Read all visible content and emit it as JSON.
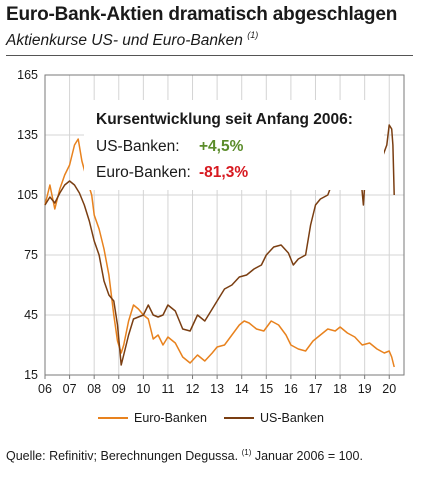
{
  "header": {
    "title": "Euro-Bank-Aktien dramatisch abgeschlagen",
    "subtitle": "Aktienkurse US- und Euro-Banken",
    "subtitle_note": "(1)"
  },
  "annotation": {
    "heading": "Kursentwicklung seit Anfang 2006:",
    "rows": [
      {
        "label": "US-Banken:",
        "value": "+4,5%",
        "color": "#5b8c2a"
      },
      {
        "label": "Euro-Banken:",
        "value": "-81,3%",
        "color": "#d71920"
      }
    ]
  },
  "footer": {
    "source_text": "Quelle: Refinitiv; Berechnungen Degussa.",
    "note_marker": "(1)",
    "note_text": "Januar 2006 = 100."
  },
  "chart_data": {
    "type": "line",
    "xlim": [
      2006,
      2020.6
    ],
    "ylim": [
      15,
      165
    ],
    "yticks": [
      15,
      45,
      75,
      105,
      135,
      165
    ],
    "xticks": [
      {
        "x": 2006,
        "label": "06"
      },
      {
        "x": 2007,
        "label": "07"
      },
      {
        "x": 2008,
        "label": "08"
      },
      {
        "x": 2009,
        "label": "09"
      },
      {
        "x": 2010,
        "label": "10"
      },
      {
        "x": 2011,
        "label": "11"
      },
      {
        "x": 2012,
        "label": "12"
      },
      {
        "x": 2013,
        "label": "13"
      },
      {
        "x": 2014,
        "label": "14"
      },
      {
        "x": 2015,
        "label": "15"
      },
      {
        "x": 2016,
        "label": "16"
      },
      {
        "x": 2017,
        "label": "17"
      },
      {
        "x": 2018,
        "label": "18"
      },
      {
        "x": 2019,
        "label": "19"
      },
      {
        "x": 2020,
        "label": "20"
      }
    ],
    "grid": true,
    "legend_position": "bottom",
    "series": [
      {
        "name": "Euro-Banken",
        "color": "#e8821e",
        "points": [
          [
            2006.0,
            100
          ],
          [
            2006.2,
            110
          ],
          [
            2006.4,
            98
          ],
          [
            2006.6,
            108
          ],
          [
            2006.8,
            115
          ],
          [
            2007.0,
            120
          ],
          [
            2007.2,
            130
          ],
          [
            2007.35,
            133
          ],
          [
            2007.5,
            122
          ],
          [
            2007.7,
            113
          ],
          [
            2007.9,
            105
          ],
          [
            2008.0,
            95
          ],
          [
            2008.2,
            88
          ],
          [
            2008.4,
            78
          ],
          [
            2008.6,
            65
          ],
          [
            2008.8,
            45
          ],
          [
            2008.95,
            32
          ],
          [
            2009.1,
            26
          ],
          [
            2009.2,
            30
          ],
          [
            2009.4,
            42
          ],
          [
            2009.6,
            50
          ],
          [
            2009.8,
            48
          ],
          [
            2010.0,
            45
          ],
          [
            2010.2,
            43
          ],
          [
            2010.4,
            33
          ],
          [
            2010.6,
            35
          ],
          [
            2010.8,
            30
          ],
          [
            2011.0,
            34
          ],
          [
            2011.3,
            31
          ],
          [
            2011.6,
            24
          ],
          [
            2011.9,
            21
          ],
          [
            2012.2,
            25
          ],
          [
            2012.5,
            22
          ],
          [
            2012.8,
            26
          ],
          [
            2013.0,
            29
          ],
          [
            2013.3,
            30
          ],
          [
            2013.6,
            35
          ],
          [
            2013.9,
            40
          ],
          [
            2014.1,
            42
          ],
          [
            2014.3,
            41
          ],
          [
            2014.6,
            38
          ],
          [
            2014.9,
            37
          ],
          [
            2015.2,
            42
          ],
          [
            2015.5,
            40
          ],
          [
            2015.8,
            35
          ],
          [
            2016.0,
            30
          ],
          [
            2016.3,
            28
          ],
          [
            2016.6,
            27
          ],
          [
            2016.9,
            32
          ],
          [
            2017.2,
            35
          ],
          [
            2017.5,
            38
          ],
          [
            2017.8,
            37
          ],
          [
            2018.0,
            39
          ],
          [
            2018.3,
            36
          ],
          [
            2018.6,
            34
          ],
          [
            2018.9,
            30
          ],
          [
            2019.2,
            31
          ],
          [
            2019.5,
            28
          ],
          [
            2019.8,
            26
          ],
          [
            2020.0,
            27
          ],
          [
            2020.1,
            24
          ],
          [
            2020.2,
            19
          ]
        ]
      },
      {
        "name": "US-Banken",
        "color": "#7a3e12",
        "points": [
          [
            2006.0,
            100
          ],
          [
            2006.2,
            104
          ],
          [
            2006.4,
            101
          ],
          [
            2006.6,
            106
          ],
          [
            2006.8,
            110
          ],
          [
            2007.0,
            112
          ],
          [
            2007.2,
            110
          ],
          [
            2007.4,
            106
          ],
          [
            2007.6,
            100
          ],
          [
            2007.8,
            92
          ],
          [
            2008.0,
            82
          ],
          [
            2008.2,
            75
          ],
          [
            2008.4,
            62
          ],
          [
            2008.6,
            55
          ],
          [
            2008.8,
            52
          ],
          [
            2008.95,
            40
          ],
          [
            2009.1,
            20
          ],
          [
            2009.2,
            25
          ],
          [
            2009.4,
            35
          ],
          [
            2009.6,
            43
          ],
          [
            2009.8,
            44
          ],
          [
            2010.0,
            45
          ],
          [
            2010.2,
            50
          ],
          [
            2010.4,
            45
          ],
          [
            2010.6,
            44
          ],
          [
            2010.8,
            45
          ],
          [
            2011.0,
            50
          ],
          [
            2011.3,
            47
          ],
          [
            2011.6,
            38
          ],
          [
            2011.9,
            37
          ],
          [
            2012.2,
            45
          ],
          [
            2012.5,
            42
          ],
          [
            2012.8,
            48
          ],
          [
            2013.0,
            52
          ],
          [
            2013.3,
            58
          ],
          [
            2013.6,
            60
          ],
          [
            2013.9,
            64
          ],
          [
            2014.2,
            65
          ],
          [
            2014.5,
            68
          ],
          [
            2014.8,
            70
          ],
          [
            2015.0,
            75
          ],
          [
            2015.3,
            79
          ],
          [
            2015.6,
            80
          ],
          [
            2015.9,
            76
          ],
          [
            2016.1,
            70
          ],
          [
            2016.3,
            73
          ],
          [
            2016.6,
            75
          ],
          [
            2016.8,
            90
          ],
          [
            2017.0,
            100
          ],
          [
            2017.2,
            103
          ],
          [
            2017.5,
            105
          ],
          [
            2017.8,
            115
          ],
          [
            2018.0,
            130
          ],
          [
            2018.1,
            135
          ],
          [
            2018.3,
            125
          ],
          [
            2018.6,
            125
          ],
          [
            2018.8,
            120
          ],
          [
            2018.95,
            100
          ],
          [
            2019.0,
            110
          ],
          [
            2019.3,
            115
          ],
          [
            2019.6,
            120
          ],
          [
            2019.9,
            130
          ],
          [
            2020.0,
            140
          ],
          [
            2020.1,
            138
          ],
          [
            2020.15,
            130
          ],
          [
            2020.2,
            105
          ]
        ]
      }
    ]
  }
}
